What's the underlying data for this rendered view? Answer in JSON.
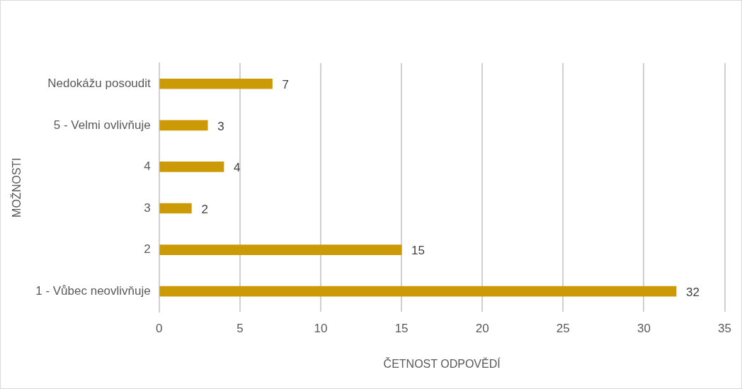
{
  "chart_data": {
    "type": "bar",
    "orientation": "horizontal",
    "xlabel": "ČETNOST ODPOVĚDÍ",
    "ylabel": "MOŽNOSTI",
    "categories": [
      "Nedokážu posoudit",
      "5 - Velmi ovlivňuje",
      "4",
      "3",
      "2",
      "1 - Vůbec neovlivňuje"
    ],
    "values": [
      7,
      3,
      4,
      2,
      15,
      32
    ],
    "color": "#cc9a06",
    "xlim": [
      0,
      35
    ],
    "xticks": [
      0,
      5,
      10,
      15,
      20,
      25,
      30,
      35
    ],
    "grid": "x",
    "data_labels": true,
    "legend": false
  }
}
